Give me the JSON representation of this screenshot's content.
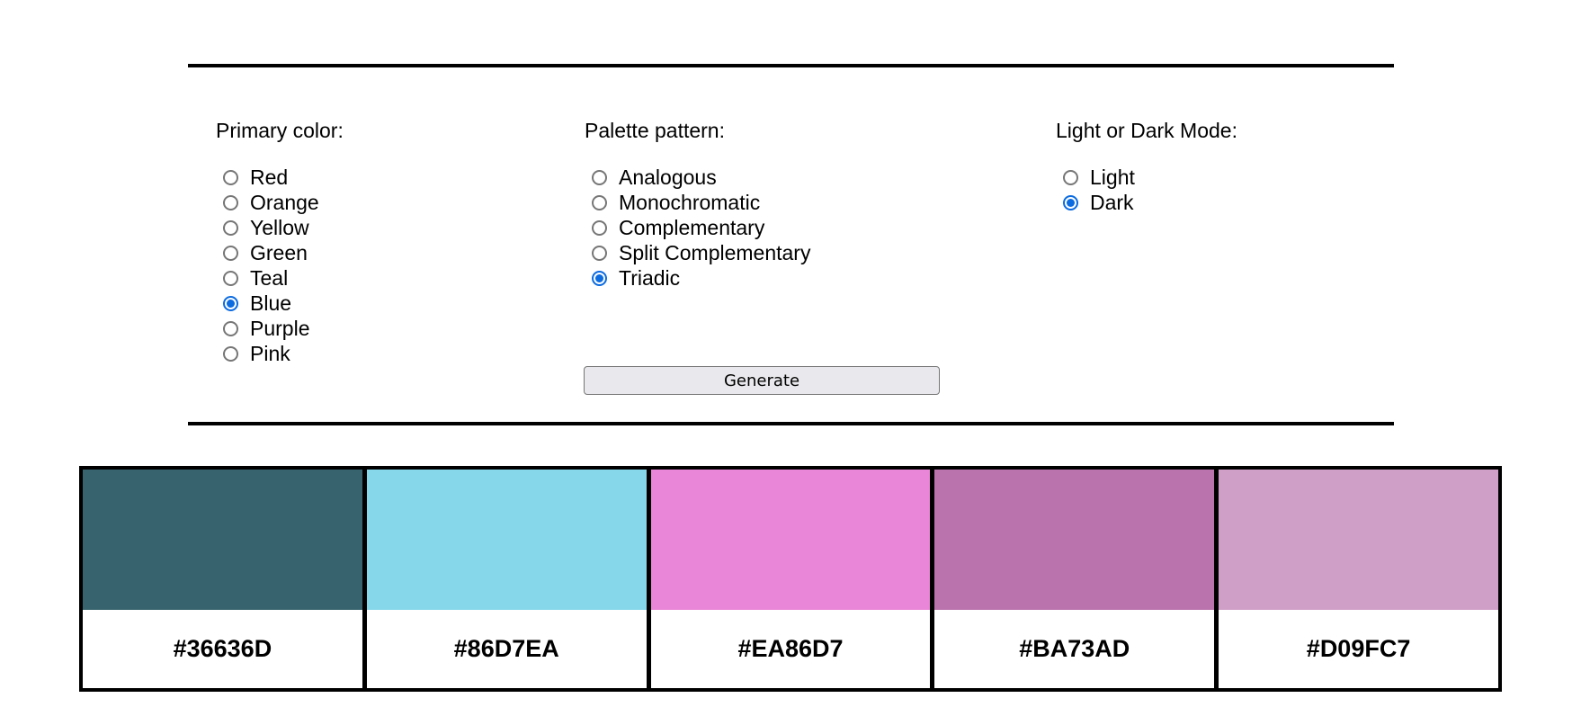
{
  "primary_color": {
    "label": "Primary color:",
    "options": [
      {
        "label": "Red",
        "checked": false
      },
      {
        "label": "Orange",
        "checked": false
      },
      {
        "label": "Yellow",
        "checked": false
      },
      {
        "label": "Green",
        "checked": false
      },
      {
        "label": "Teal",
        "checked": false
      },
      {
        "label": "Blue",
        "checked": true
      },
      {
        "label": "Purple",
        "checked": false
      },
      {
        "label": "Pink",
        "checked": false
      }
    ]
  },
  "palette_pattern": {
    "label": "Palette pattern:",
    "options": [
      {
        "label": "Analogous",
        "checked": false
      },
      {
        "label": "Monochromatic",
        "checked": false
      },
      {
        "label": "Complementary",
        "checked": false
      },
      {
        "label": "Split Complementary",
        "checked": false
      },
      {
        "label": "Triadic",
        "checked": true
      }
    ]
  },
  "mode": {
    "label": "Light or Dark Mode:",
    "options": [
      {
        "label": "Light",
        "checked": false
      },
      {
        "label": "Dark",
        "checked": true
      }
    ]
  },
  "generate_label": "Generate",
  "palette": [
    {
      "hex": "#36636D",
      "color": "#36636D"
    },
    {
      "hex": "#86D7EA",
      "color": "#86D7EA"
    },
    {
      "hex": "#EA86D7",
      "color": "#EA86D7"
    },
    {
      "hex": "#BA73AD",
      "color": "#BA73AD"
    },
    {
      "hex": "#D09FC7",
      "color": "#D09FC7"
    }
  ],
  "colors": {
    "radio_accent": "#0b6be0",
    "radio_border": "#767676",
    "button_bg": "#e9e9ed"
  }
}
